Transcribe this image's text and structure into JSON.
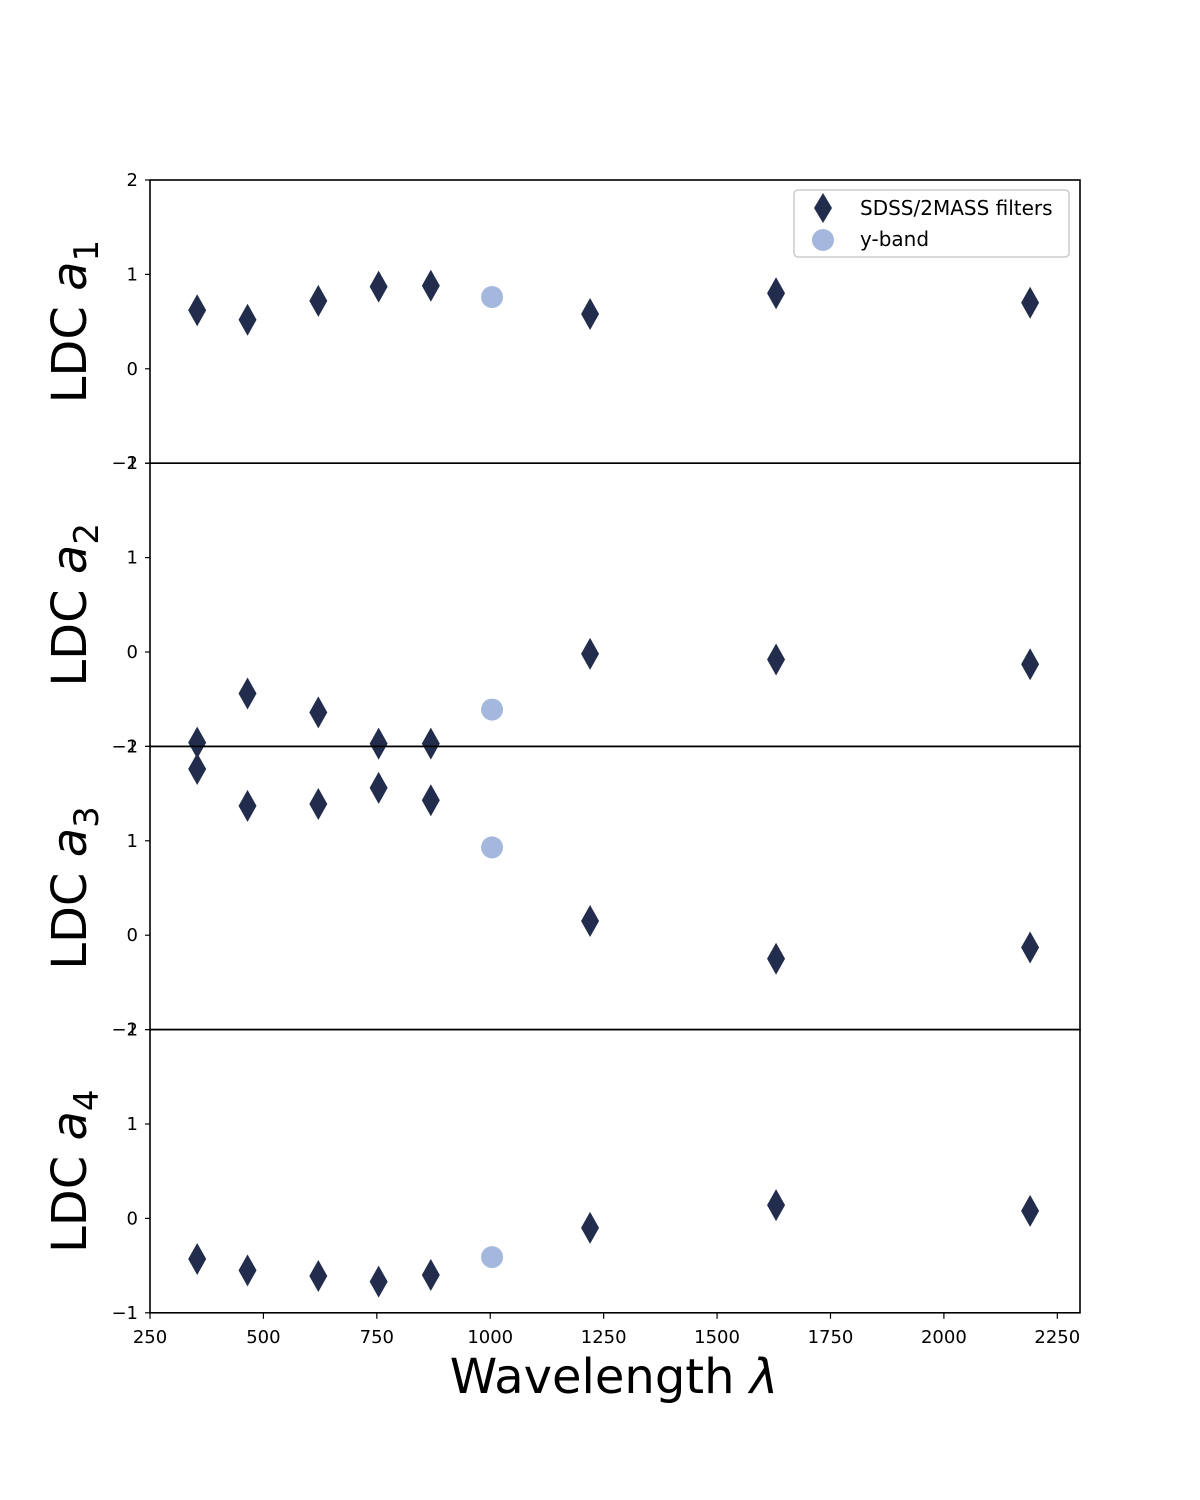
{
  "chart_data": {
    "type": "scatter",
    "layout": "stacked-subplots-shared-x",
    "xlabel": {
      "text": "Wavelength ",
      "symbol": "λ"
    },
    "xlim": [
      250,
      2300
    ],
    "xticks": [
      250,
      500,
      750,
      1000,
      1250,
      1500,
      1750,
      2000,
      2250
    ],
    "xtick_labels": [
      "250",
      "500",
      "750",
      "1000",
      "1250",
      "1500",
      "1750",
      "2000",
      "2250"
    ],
    "ylim": [
      -1,
      2
    ],
    "yticks": [
      -1,
      0,
      1,
      2
    ],
    "ytick_labels": [
      "−1",
      "0",
      "1",
      "2"
    ],
    "grid": false,
    "legend": {
      "placement": "top-right of first panel",
      "entries": [
        {
          "label": "SDSS/2MASS filters",
          "marker": "diamond",
          "color": "#222d4d"
        },
        {
          "label": "y-band",
          "marker": "circle",
          "color": "#a4b8dd"
        }
      ]
    },
    "series_styles": {
      "SDSS/2MASS filters": {
        "marker": "diamond",
        "color": "#222d4d"
      },
      "y-band": {
        "marker": "circle",
        "color": "#a4b8dd"
      }
    },
    "panels": [
      {
        "ylabel": {
          "text": "LDC ",
          "symbol": "a",
          "subscript": "1"
        },
        "series": [
          {
            "name": "SDSS/2MASS filters",
            "x": [
              354,
              465,
              621,
              754,
              869,
              1220,
              1630,
              2190
            ],
            "y": [
              0.62,
              0.52,
              0.72,
              0.87,
              0.88,
              0.58,
              0.8,
              0.7
            ]
          },
          {
            "name": "y-band",
            "x": [
              1004
            ],
            "y": [
              0.76
            ]
          }
        ]
      },
      {
        "ylabel": {
          "text": "LDC ",
          "symbol": "a",
          "subscript": "2"
        },
        "series": [
          {
            "name": "SDSS/2MASS filters",
            "x": [
              354,
              465,
              621,
              754,
              869,
              1220,
              1630,
              2190
            ],
            "y": [
              -0.96,
              -0.44,
              -0.64,
              -0.97,
              -0.97,
              -0.02,
              -0.08,
              -0.13
            ]
          },
          {
            "name": "y-band",
            "x": [
              1004
            ],
            "y": [
              -0.61
            ]
          }
        ]
      },
      {
        "ylabel": {
          "text": "LDC ",
          "symbol": "a",
          "subscript": "3"
        },
        "series": [
          {
            "name": "SDSS/2MASS filters",
            "x": [
              354,
              465,
              621,
              754,
              869,
              1220,
              1630,
              2190
            ],
            "y": [
              1.76,
              1.37,
              1.39,
              1.56,
              1.43,
              0.15,
              -0.25,
              -0.13
            ]
          },
          {
            "name": "y-band",
            "x": [
              1004
            ],
            "y": [
              0.93
            ]
          }
        ]
      },
      {
        "ylabel": {
          "text": "LDC ",
          "symbol": "a",
          "subscript": "4"
        },
        "series": [
          {
            "name": "SDSS/2MASS filters",
            "x": [
              354,
              465,
              621,
              754,
              869,
              1220,
              1630,
              2190
            ],
            "y": [
              -0.43,
              -0.55,
              -0.61,
              -0.67,
              -0.6,
              -0.1,
              0.14,
              0.08
            ]
          },
          {
            "name": "y-band",
            "x": [
              1004
            ],
            "y": [
              -0.41
            ]
          }
        ]
      }
    ]
  }
}
